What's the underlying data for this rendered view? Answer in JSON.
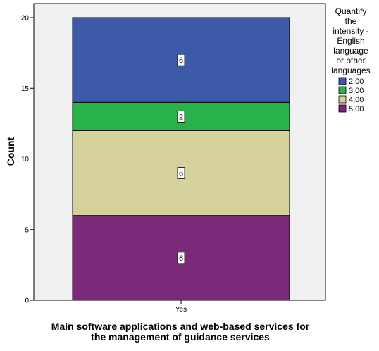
{
  "chart_data": {
    "type": "bar",
    "stacked": true,
    "categories": [
      "Yes"
    ],
    "series": [
      {
        "name": "5,00",
        "values": [
          6
        ],
        "color": "#7b2a7a"
      },
      {
        "name": "4,00",
        "values": [
          6
        ],
        "color": "#d5d19b"
      },
      {
        "name": "3,00",
        "values": [
          2
        ],
        "color": "#2ab24a"
      },
      {
        "name": "2,00",
        "values": [
          6
        ],
        "color": "#3c5aa8"
      }
    ],
    "legend_order": [
      "2,00",
      "3,00",
      "4,00",
      "5,00"
    ],
    "xlabel_lines": [
      "Main software applications and web-based services for",
      "the management of guidance services"
    ],
    "ylabel": "Count",
    "yticks": [
      0,
      5,
      10,
      15,
      20
    ],
    "ylim": [
      0,
      20
    ],
    "legend_title_lines": [
      "Quantify",
      "the",
      "intensity -",
      "English",
      "language",
      "or other",
      "languages"
    ],
    "legend_position": "right",
    "grid": false,
    "plot_background": "#f0f0f0"
  }
}
